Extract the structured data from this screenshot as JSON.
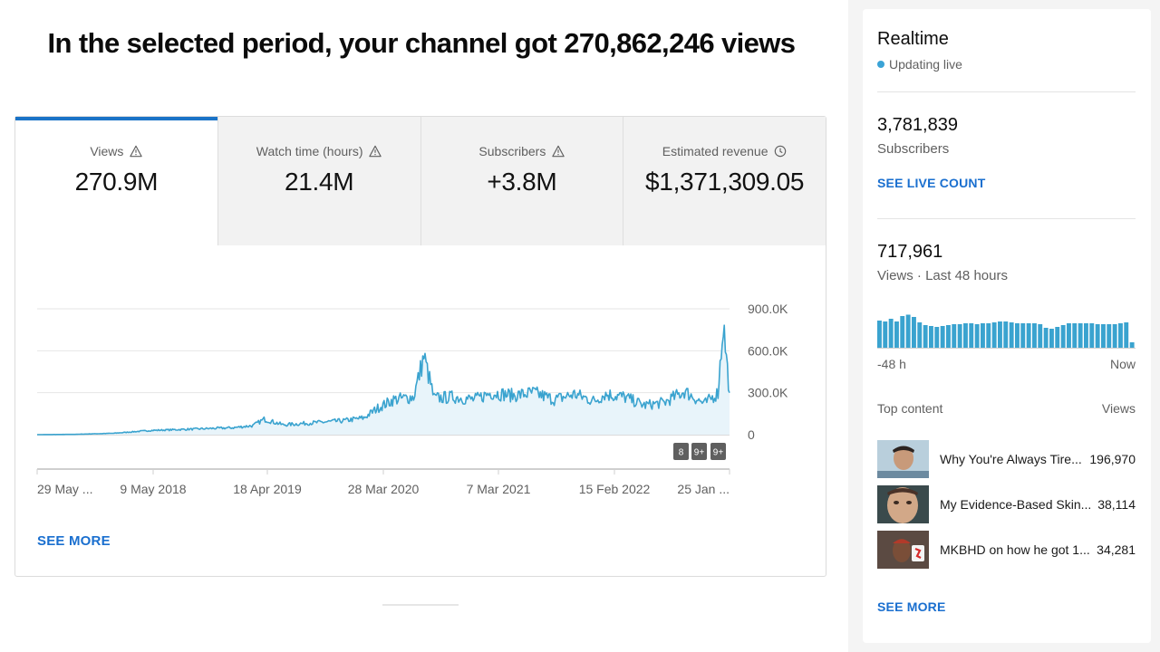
{
  "headline": "In the selected period, your channel got 270,862,246 views",
  "tabs": [
    {
      "label": "Views",
      "value": "270.9M",
      "icon": "warning-icon",
      "active": true
    },
    {
      "label": "Watch time (hours)",
      "value": "21.4M",
      "icon": "warning-icon",
      "active": false
    },
    {
      "label": "Subscribers",
      "value": "+3.8M",
      "icon": "warning-icon",
      "active": false
    },
    {
      "label": "Estimated revenue",
      "value": "$1,371,309.05",
      "icon": "clock-icon",
      "active": false
    }
  ],
  "chart_data": {
    "type": "area",
    "title": "",
    "xlabel": "",
    "ylabel": "",
    "x_tick_labels": [
      "29 May ...",
      "9 May 2018",
      "18 Apr 2019",
      "28 Mar 2020",
      "7 Mar 2021",
      "15 Feb 2022",
      "25 Jan ..."
    ],
    "y_tick_labels": [
      "900.0K",
      "600.0K",
      "300.0K",
      "0"
    ],
    "ylim": [
      0,
      900000
    ],
    "grid": true,
    "series_color": "#3aa3cf",
    "fill_color": "#e8f4fa",
    "series": [
      {
        "x": [
          "2017-05-29",
          "2017-09",
          "2018-01",
          "2018-05-09",
          "2018-09",
          "2019-01",
          "2019-03",
          "2019-04-18",
          "2019-06",
          "2019-09",
          "2019-12",
          "2020-02",
          "2020-03-28",
          "2020-05",
          "2020-07",
          "2020-08",
          "2020-09",
          "2020-11",
          "2021-01",
          "2021-03-07",
          "2021-05",
          "2021-07",
          "2021-09",
          "2021-11",
          "2022-01",
          "2022-02-15",
          "2022-04",
          "2022-06",
          "2022-08",
          "2022-10",
          "2022-12",
          "2023-01-25",
          "2023-02-10",
          "2023-03-01"
        ],
        "values": [
          0,
          2000,
          10000,
          30000,
          40000,
          50000,
          65000,
          110000,
          70000,
          85000,
          100000,
          120000,
          190000,
          250000,
          270000,
          560000,
          260000,
          270000,
          250000,
          300000,
          280000,
          300000,
          250000,
          290000,
          240000,
          290000,
          270000,
          210000,
          230000,
          310000,
          220000,
          300000,
          800000,
          300000
        ]
      }
    ],
    "markers": [
      "8",
      "9+",
      "9+"
    ]
  },
  "see_more_label": "SEE MORE",
  "realtime": {
    "title": "Realtime",
    "status": "Updating live",
    "subscribers_value": "3,781,839",
    "subscribers_label": "Subscribers",
    "live_count_link": "SEE LIVE COUNT",
    "views_value": "717,961",
    "views_label": "Views · Last 48 hours",
    "bar_values": [
      0.62,
      0.6,
      0.66,
      0.6,
      0.72,
      0.75,
      0.7,
      0.58,
      0.52,
      0.5,
      0.48,
      0.5,
      0.52,
      0.54,
      0.54,
      0.56,
      0.56,
      0.54,
      0.56,
      0.56,
      0.58,
      0.6,
      0.6,
      0.58,
      0.56,
      0.56,
      0.56,
      0.56,
      0.54,
      0.46,
      0.44,
      0.48,
      0.52,
      0.56,
      0.56,
      0.56,
      0.56,
      0.56,
      0.54,
      0.54,
      0.54,
      0.54,
      0.56,
      0.58,
      0.14
    ],
    "bar_color": "#3aa3cf",
    "axis_start": "-48 h",
    "axis_end": "Now",
    "top_content_label": "Top content",
    "top_content_metric": "Views",
    "top_content": [
      {
        "title": "Why You're Always Tire...",
        "views": "196,970"
      },
      {
        "title": "My Evidence-Based Skin...",
        "views": "38,114"
      },
      {
        "title": "MKBHD on how he got 1...",
        "views": "34,281"
      }
    ],
    "see_more_label": "SEE MORE"
  }
}
